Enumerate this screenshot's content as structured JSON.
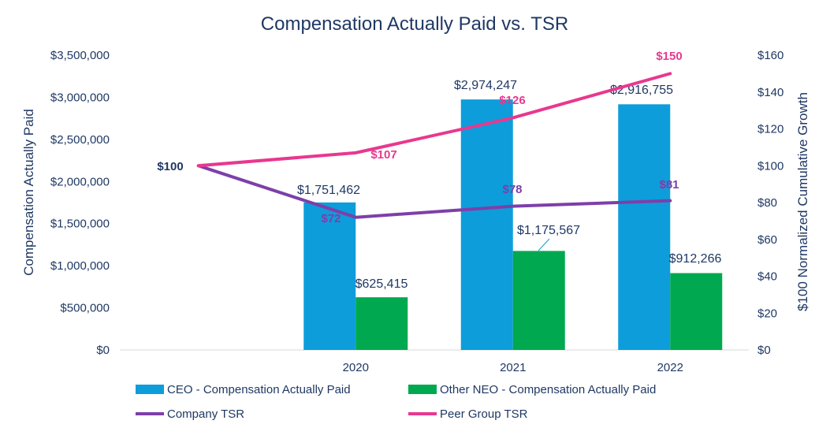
{
  "chart_data": {
    "type": "bar",
    "title": "Compensation Actually Paid vs. TSR",
    "ylabel": "Compensation Actually Paid",
    "y2label": "$100 Normalized Cumulative Growth",
    "ylim": [
      0,
      3500000
    ],
    "y2lim": [
      0,
      160
    ],
    "yticks": [
      "$0",
      "$500,000",
      "$1,000,000",
      "$1,500,000",
      "$2,000,000",
      "$2,500,000",
      "$3,000,000",
      "$3,500,000"
    ],
    "y2ticks": [
      "$0",
      "$20",
      "$40",
      "$60",
      "$80",
      "$100",
      "$120",
      "$140",
      "$160"
    ],
    "categories": [
      "",
      "2020",
      "2021",
      "2022"
    ],
    "series": [
      {
        "name": "CEO - Compensation Actually Paid",
        "kind": "bar",
        "axis": "left",
        "color": "#0d9ddb",
        "values": [
          null,
          1751462,
          2974247,
          2916755
        ],
        "labels": [
          "",
          "$1,751,462",
          "$2,974,247",
          "$2,916,755"
        ]
      },
      {
        "name": "Other NEO - Compensation Actually Paid",
        "kind": "bar",
        "axis": "left",
        "color": "#00a94f",
        "values": [
          null,
          625415,
          1175567,
          912266
        ],
        "labels": [
          "",
          "$625,415",
          "$1,175,567",
          "$912,266"
        ]
      },
      {
        "name": "Company TSR",
        "kind": "line",
        "axis": "right",
        "color": "#7d3fa9",
        "values": [
          100,
          72,
          78,
          81
        ],
        "labels": [
          "$100",
          "$72",
          "$78",
          "$81"
        ]
      },
      {
        "name": "Peer Group TSR",
        "kind": "line",
        "axis": "right",
        "color": "#e8388f",
        "values": [
          100,
          107,
          126,
          150
        ],
        "labels": [
          "",
          "$107",
          "$126",
          "$150"
        ]
      }
    ],
    "legend_position": "bottom"
  }
}
